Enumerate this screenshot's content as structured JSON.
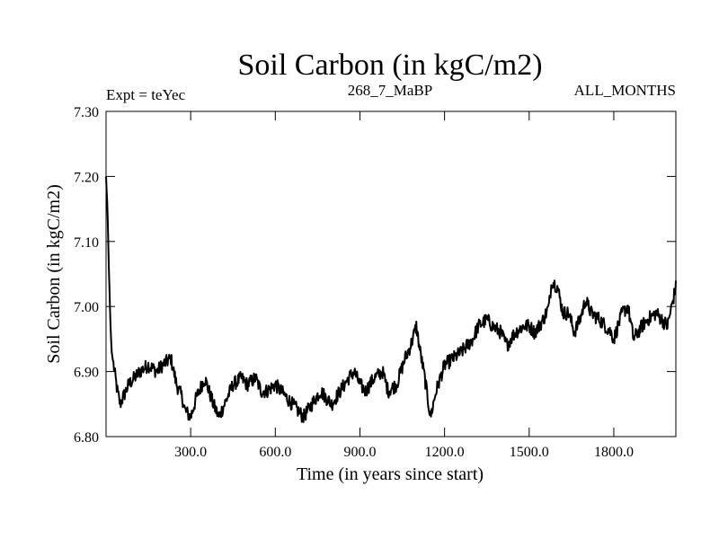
{
  "chart_data": {
    "type": "line",
    "title": "Soil Carbon (in kgC/m2)",
    "subtitle_left": "Expt = teYec",
    "subtitle_center": "268_7_MaBP",
    "subtitle_right": "ALL_MONTHS",
    "xlabel": "Time (in years since start)",
    "ylabel": "Soil Carbon (in kgC/m2)",
    "xlim": [
      0,
      2020
    ],
    "ylim": [
      6.8,
      7.3
    ],
    "x_ticks": [
      300,
      600,
      900,
      1200,
      1500,
      1800
    ],
    "x_tick_labels": [
      "300.0",
      "600.0",
      "900.0",
      "1200.0",
      "1500.0",
      "1800.0"
    ],
    "y_ticks": [
      6.8,
      6.9,
      7.0,
      7.1,
      7.2,
      7.3
    ],
    "y_tick_labels": [
      "6.80",
      "6.90",
      "7.00",
      "7.10",
      "7.20",
      "7.30"
    ],
    "grid": false,
    "series": [
      {
        "name": "Soil Carbon",
        "color": "#000000",
        "x": [
          0,
          5,
          10,
          15,
          20,
          30,
          40,
          50,
          60,
          80,
          100,
          120,
          150,
          180,
          200,
          230,
          250,
          270,
          280,
          300,
          320,
          350,
          380,
          400,
          430,
          450,
          480,
          500,
          530,
          550,
          570,
          600,
          620,
          640,
          660,
          680,
          700,
          730,
          760,
          780,
          800,
          830,
          860,
          880,
          900,
          920,
          950,
          980,
          1000,
          1030,
          1060,
          1080,
          1100,
          1110,
          1130,
          1150,
          1170,
          1200,
          1230,
          1260,
          1280,
          1300,
          1320,
          1350,
          1370,
          1400,
          1420,
          1450,
          1480,
          1500,
          1520,
          1550,
          1570,
          1580,
          1600,
          1620,
          1640,
          1660,
          1680,
          1700,
          1720,
          1750,
          1770,
          1790,
          1800,
          1830,
          1850,
          1870,
          1900,
          1920,
          1950,
          1970,
          1990,
          2010,
          2020
        ],
        "values": [
          7.2,
          7.15,
          7.06,
          6.98,
          6.93,
          6.9,
          6.87,
          6.85,
          6.86,
          6.88,
          6.89,
          6.9,
          6.91,
          6.9,
          6.91,
          6.92,
          6.88,
          6.86,
          6.84,
          6.83,
          6.86,
          6.89,
          6.85,
          6.83,
          6.86,
          6.88,
          6.89,
          6.88,
          6.89,
          6.87,
          6.87,
          6.88,
          6.87,
          6.86,
          6.85,
          6.84,
          6.83,
          6.85,
          6.87,
          6.86,
          6.85,
          6.87,
          6.89,
          6.9,
          6.88,
          6.87,
          6.89,
          6.9,
          6.87,
          6.88,
          6.92,
          6.94,
          6.97,
          6.94,
          6.89,
          6.83,
          6.87,
          6.91,
          6.92,
          6.93,
          6.94,
          6.95,
          6.97,
          6.98,
          6.97,
          6.96,
          6.94,
          6.96,
          6.97,
          6.97,
          6.96,
          6.98,
          7.0,
          7.04,
          7.03,
          6.99,
          6.99,
          6.96,
          6.98,
          7.01,
          6.99,
          6.98,
          6.97,
          6.96,
          6.95,
          6.99,
          7.0,
          6.95,
          6.97,
          6.98,
          6.99,
          6.98,
          6.97,
          7.01,
          7.03
        ]
      }
    ]
  }
}
